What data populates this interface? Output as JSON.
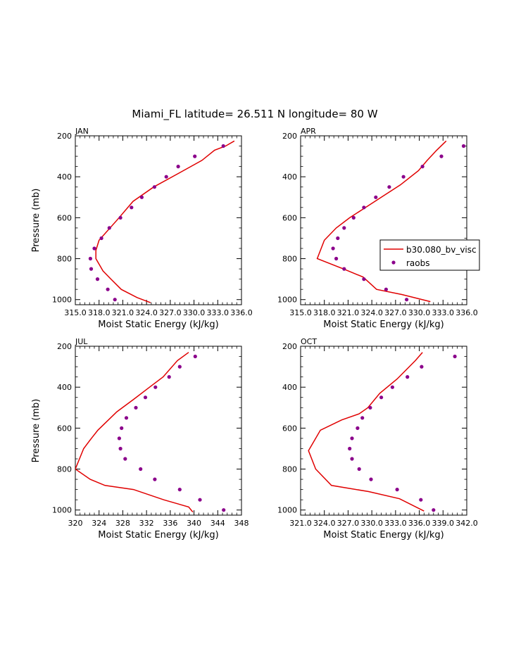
{
  "figure": {
    "title": "Miami_FL  latitude= 26.511 N longitude= 80 W"
  },
  "legend": {
    "model_label": "b30.080_bv_visc",
    "obs_label": "raobs"
  },
  "colors": {
    "model_line": "#e00000",
    "obs_marker": "#8b008b"
  },
  "chart_data": [
    {
      "type": "line",
      "panel": "JAN",
      "xlabel": "Moist Static Energy (kJ/kg)",
      "ylabel": "Pressure (mb)",
      "xlim": [
        315.0,
        336.0
      ],
      "ylim": [
        1025,
        200
      ],
      "xticks": [
        315.0,
        318.0,
        321.0,
        324.0,
        327.0,
        330.0,
        333.0,
        336.0
      ],
      "xtick_labels": [
        "315.0",
        "318.0",
        "321.0",
        "324.0",
        "327.0",
        "330.0",
        "333.0",
        "336.0"
      ],
      "yticks": [
        200,
        400,
        600,
        800,
        1000
      ],
      "ytick_labels": [
        "200",
        "400",
        "600",
        "800",
        "1000"
      ],
      "grid": false,
      "series": [
        {
          "name": "b30.080_bv_visc",
          "style": "line",
          "points": [
            [
              335.1,
              225
            ],
            [
              334.0,
              250
            ],
            [
              332.6,
              270
            ],
            [
              331.0,
              320
            ],
            [
              328.2,
              380
            ],
            [
              324.9,
              450
            ],
            [
              322.3,
              520
            ],
            [
              320.3,
              610
            ],
            [
              318.0,
              710
            ],
            [
              317.6,
              760
            ],
            [
              317.6,
              800
            ],
            [
              318.5,
              860
            ],
            [
              319.5,
              900
            ],
            [
              320.8,
              950
            ],
            [
              322.8,
              990
            ],
            [
              324.5,
              1015
            ]
          ]
        },
        {
          "name": "raobs",
          "style": "points",
          "points": [
            [
              333.7,
              250
            ],
            [
              330.1,
              300
            ],
            [
              328.0,
              350
            ],
            [
              326.5,
              400
            ],
            [
              325.0,
              450
            ],
            [
              323.4,
              500
            ],
            [
              322.1,
              550
            ],
            [
              320.7,
              600
            ],
            [
              319.3,
              650
            ],
            [
              318.3,
              700
            ],
            [
              317.4,
              750
            ],
            [
              316.9,
              800
            ],
            [
              317.0,
              850
            ],
            [
              317.8,
              900
            ],
            [
              319.1,
              950
            ],
            [
              320.0,
              1000
            ]
          ]
        }
      ]
    },
    {
      "type": "line",
      "panel": "APR",
      "xlabel": "Moist Static Energy (kJ/kg)",
      "ylabel": "",
      "xlim": [
        315.0,
        336.0
      ],
      "ylim": [
        1025,
        200
      ],
      "xticks": [
        315.0,
        318.0,
        321.0,
        324.0,
        327.0,
        330.0,
        333.0,
        336.0
      ],
      "xtick_labels": [
        "315.0",
        "318.0",
        "321.0",
        "324.0",
        "327.0",
        "330.0",
        "333.0",
        "336.0"
      ],
      "yticks": [
        200,
        400,
        600,
        800,
        1000
      ],
      "ytick_labels": [
        "200",
        "400",
        "600",
        "800",
        "1000"
      ],
      "grid": false,
      "series": [
        {
          "name": "b30.080_bv_visc",
          "style": "line",
          "points": [
            [
              333.4,
              225
            ],
            [
              332.2,
              270
            ],
            [
              331.0,
              320
            ],
            [
              329.9,
              370
            ],
            [
              327.6,
              440
            ],
            [
              325.2,
              500
            ],
            [
              322.8,
              560
            ],
            [
              321.2,
              600
            ],
            [
              319.5,
              650
            ],
            [
              318.0,
              710
            ],
            [
              317.1,
              800
            ],
            [
              320.4,
              850
            ],
            [
              322.9,
              890
            ],
            [
              324.6,
              950
            ],
            [
              327.8,
              975
            ],
            [
              331.4,
              1010
            ]
          ]
        },
        {
          "name": "raobs",
          "style": "points",
          "points": [
            [
              335.6,
              250
            ],
            [
              332.8,
              300
            ],
            [
              330.4,
              350
            ],
            [
              328.0,
              400
            ],
            [
              326.2,
              450
            ],
            [
              324.5,
              500
            ],
            [
              323.0,
              550
            ],
            [
              321.7,
              600
            ],
            [
              320.5,
              650
            ],
            [
              319.7,
              700
            ],
            [
              319.1,
              750
            ],
            [
              319.5,
              800
            ],
            [
              320.5,
              850
            ],
            [
              323.0,
              900
            ],
            [
              325.8,
              950
            ],
            [
              328.4,
              1000
            ]
          ]
        }
      ]
    },
    {
      "type": "line",
      "panel": "JUL",
      "xlabel": "Moist Static Energy (kJ/kg)",
      "ylabel": "Pressure (mb)",
      "xlim": [
        320,
        348
      ],
      "ylim": [
        1025,
        200
      ],
      "xticks": [
        320,
        324,
        328,
        332,
        336,
        340,
        344,
        348
      ],
      "xtick_labels": [
        "320",
        "324",
        "328",
        "332",
        "336",
        "340",
        "344",
        "348"
      ],
      "yticks": [
        200,
        400,
        600,
        800,
        1000
      ],
      "ytick_labels": [
        "200",
        "400",
        "600",
        "800",
        "1000"
      ],
      "grid": false,
      "series": [
        {
          "name": "b30.080_bv_visc",
          "style": "line",
          "points": [
            [
              339.1,
              230
            ],
            [
              337.2,
              270
            ],
            [
              334.8,
              350
            ],
            [
              332.5,
              400
            ],
            [
              329.8,
              460
            ],
            [
              327.0,
              520
            ],
            [
              323.8,
              610
            ],
            [
              322.7,
              650
            ],
            [
              321.4,
              700
            ],
            [
              320.0,
              800
            ],
            [
              322.5,
              850
            ],
            [
              325.0,
              880
            ],
            [
              329.8,
              900
            ],
            [
              334.9,
              950
            ],
            [
              339.1,
              985
            ],
            [
              339.8,
              1010
            ]
          ]
        },
        {
          "name": "raobs",
          "style": "points",
          "points": [
            [
              340.2,
              250
            ],
            [
              337.6,
              300
            ],
            [
              335.8,
              350
            ],
            [
              333.5,
              400
            ],
            [
              331.8,
              450
            ],
            [
              330.2,
              500
            ],
            [
              328.6,
              550
            ],
            [
              327.8,
              600
            ],
            [
              327.4,
              650
            ],
            [
              327.6,
              700
            ],
            [
              328.4,
              750
            ],
            [
              331.0,
              800
            ],
            [
              333.4,
              850
            ],
            [
              337.6,
              900
            ],
            [
              341.0,
              950
            ],
            [
              345.0,
              1000
            ]
          ]
        }
      ]
    },
    {
      "type": "line",
      "panel": "OCT",
      "xlabel": "Moist Static Energy (kJ/kg)",
      "ylabel": "",
      "xlim": [
        321.0,
        342.0
      ],
      "ylim": [
        1025,
        200
      ],
      "xticks": [
        321.0,
        324.0,
        327.0,
        330.0,
        333.0,
        336.0,
        339.0,
        342.0
      ],
      "xtick_labels": [
        "321.0",
        "324.0",
        "327.0",
        "330.0",
        "333.0",
        "336.0",
        "339.0",
        "342.0"
      ],
      "yticks": [
        200,
        400,
        600,
        800,
        1000
      ],
      "ytick_labels": [
        "200",
        "400",
        "600",
        "800",
        "1000"
      ],
      "grid": false,
      "series": [
        {
          "name": "b30.080_bv_visc",
          "style": "line",
          "points": [
            [
              336.4,
              230
            ],
            [
              335.5,
              270
            ],
            [
              333.2,
              360
            ],
            [
              331.0,
              430
            ],
            [
              329.5,
              500
            ],
            [
              328.4,
              530
            ],
            [
              326.2,
              560
            ],
            [
              323.5,
              610
            ],
            [
              322.0,
              710
            ],
            [
              322.9,
              800
            ],
            [
              324.9,
              880
            ],
            [
              329.6,
              910
            ],
            [
              333.5,
              945
            ],
            [
              336.6,
              1005
            ]
          ]
        },
        {
          "name": "raobs",
          "style": "points",
          "points": [
            [
              340.5,
              250
            ],
            [
              336.3,
              300
            ],
            [
              334.5,
              350
            ],
            [
              332.6,
              400
            ],
            [
              331.2,
              450
            ],
            [
              329.8,
              500
            ],
            [
              328.8,
              550
            ],
            [
              328.2,
              600
            ],
            [
              327.5,
              650
            ],
            [
              327.2,
              700
            ],
            [
              327.5,
              750
            ],
            [
              328.4,
              800
            ],
            [
              329.9,
              850
            ],
            [
              333.2,
              900
            ],
            [
              336.2,
              950
            ],
            [
              337.8,
              1000
            ]
          ]
        }
      ]
    }
  ]
}
